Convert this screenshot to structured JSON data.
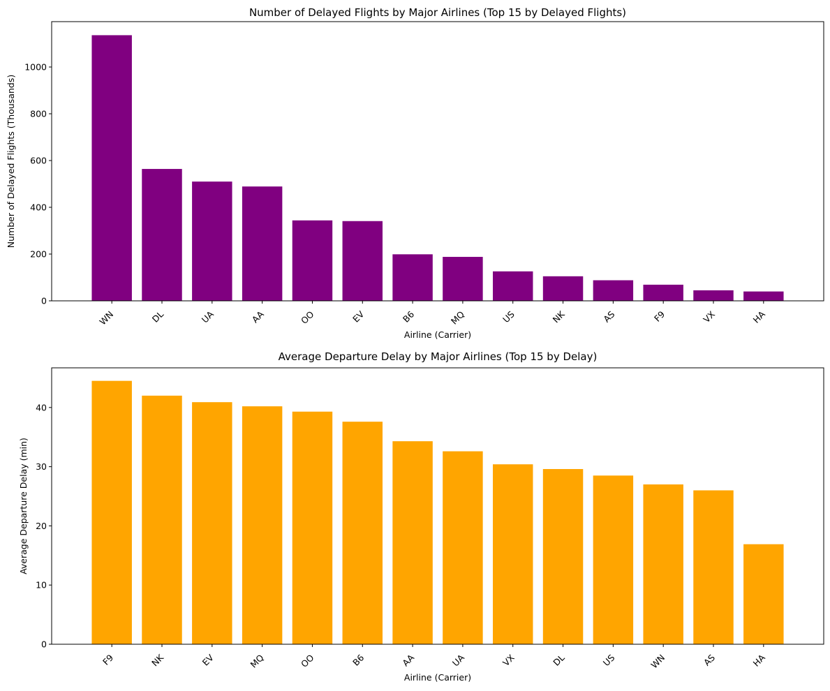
{
  "chart_data": [
    {
      "type": "bar",
      "title": "Number of Delayed Flights by Major Airlines (Top 15 by Delayed Flights)",
      "xlabel": "Airline (Carrier)",
      "ylabel": "Number of Delayed Flights (Thousands)",
      "categories": [
        "WN",
        "DL",
        "UA",
        "AA",
        "OO",
        "EV",
        "B6",
        "MQ",
        "US",
        "NK",
        "AS",
        "F9",
        "VX",
        "HA"
      ],
      "values": [
        1136,
        564,
        510,
        489,
        344,
        341,
        199,
        188,
        126,
        105,
        88,
        69,
        45,
        40
      ],
      "ylim": [
        0,
        1194
      ],
      "yticks": [
        0,
        200,
        400,
        600,
        800,
        1000
      ],
      "color": "#800080",
      "grid": false
    },
    {
      "type": "bar",
      "title": "Average Departure Delay by Major Airlines (Top 15 by Delay)",
      "xlabel": "Airline (Carrier)",
      "ylabel": "Average Departure Delay (min)",
      "categories": [
        "F9",
        "NK",
        "EV",
        "MQ",
        "OO",
        "B6",
        "AA",
        "UA",
        "VX",
        "DL",
        "US",
        "WN",
        "AS",
        "HA"
      ],
      "values": [
        44.5,
        42.0,
        40.9,
        40.2,
        39.3,
        37.6,
        34.3,
        32.6,
        30.4,
        29.6,
        28.5,
        27.0,
        26.0,
        16.9
      ],
      "ylim": [
        0,
        46.7
      ],
      "yticks": [
        0,
        10,
        20,
        30,
        40
      ],
      "color": "#ffa500",
      "grid": false
    }
  ]
}
